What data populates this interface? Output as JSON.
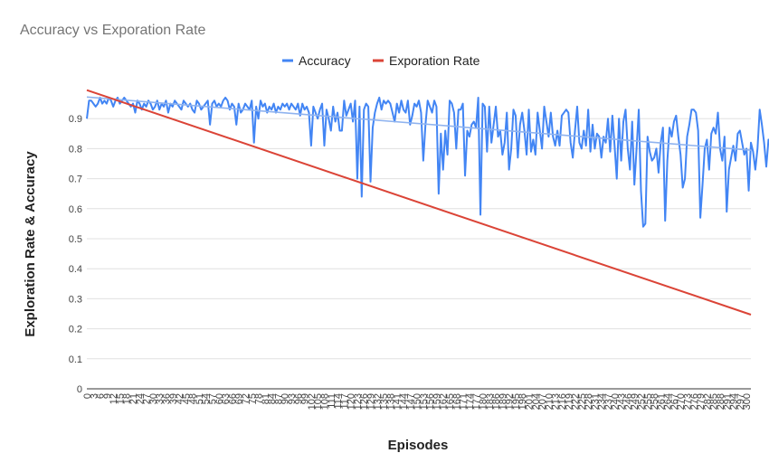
{
  "chart_data": {
    "type": "line",
    "title": "Accuracy vs Exporation Rate",
    "xlabel": "Episodes",
    "ylabel": "Exploration Rate & Accuracy",
    "xlim": [
      0,
      302
    ],
    "ylim": [
      0,
      1
    ],
    "y_ticks": [
      "0",
      "0.1",
      "0.2",
      "0.3",
      "0.4",
      "0.5",
      "0.6",
      "0.7",
      "0.8",
      "0.9"
    ],
    "x_tick_step": 3,
    "grid": true,
    "legend_position": "top",
    "series": [
      {
        "name": "Accuracy",
        "color": "#4285f4",
        "x_start": 0,
        "x_step": 1,
        "values": [
          0.9,
          0.96,
          0.96,
          0.95,
          0.94,
          0.95,
          0.97,
          0.95,
          0.96,
          0.95,
          0.97,
          0.96,
          0.94,
          0.96,
          0.97,
          0.95,
          0.96,
          0.97,
          0.96,
          0.95,
          0.94,
          0.95,
          0.92,
          0.96,
          0.95,
          0.93,
          0.95,
          0.94,
          0.96,
          0.95,
          0.93,
          0.94,
          0.96,
          0.93,
          0.95,
          0.94,
          0.96,
          0.92,
          0.95,
          0.94,
          0.96,
          0.95,
          0.94,
          0.93,
          0.96,
          0.95,
          0.94,
          0.95,
          0.93,
          0.92,
          0.96,
          0.95,
          0.93,
          0.94,
          0.95,
          0.96,
          0.88,
          0.95,
          0.96,
          0.94,
          0.95,
          0.94,
          0.96,
          0.97,
          0.96,
          0.93,
          0.95,
          0.94,
          0.88,
          0.95,
          0.92,
          0.93,
          0.95,
          0.94,
          0.93,
          0.96,
          0.82,
          0.94,
          0.9,
          0.96,
          0.94,
          0.95,
          0.92,
          0.94,
          0.93,
          0.95,
          0.92,
          0.94,
          0.93,
          0.95,
          0.94,
          0.95,
          0.93,
          0.95,
          0.94,
          0.93,
          0.95,
          0.91,
          0.95,
          0.93,
          0.94,
          0.92,
          0.81,
          0.94,
          0.92,
          0.9,
          0.93,
          0.95,
          0.81,
          0.93,
          0.9,
          0.86,
          0.94,
          0.89,
          0.92,
          0.86,
          0.86,
          0.96,
          0.91,
          0.93,
          0.95,
          0.89,
          0.96,
          0.7,
          0.94,
          0.64,
          0.93,
          0.95,
          0.94,
          0.69,
          0.87,
          0.92,
          0.95,
          0.97,
          0.93,
          0.96,
          0.95,
          0.96,
          0.95,
          0.92,
          0.89,
          0.95,
          0.92,
          0.96,
          0.93,
          0.92,
          0.96,
          0.88,
          0.91,
          0.95,
          0.94,
          0.96,
          0.92,
          0.76,
          0.88,
          0.96,
          0.94,
          0.92,
          0.96,
          0.94,
          0.65,
          0.85,
          0.73,
          0.86,
          0.78,
          0.96,
          0.95,
          0.92,
          0.8,
          0.93,
          0.93,
          0.95,
          0.71,
          0.86,
          0.84,
          0.88,
          0.89,
          0.87,
          0.97,
          0.58,
          0.95,
          0.94,
          0.79,
          0.94,
          0.82,
          0.88,
          0.94,
          0.84,
          0.86,
          0.78,
          0.82,
          0.92,
          0.73,
          0.8,
          0.93,
          0.91,
          0.77,
          0.88,
          0.92,
          0.86,
          0.78,
          0.93,
          0.79,
          0.83,
          0.78,
          0.92,
          0.86,
          0.8,
          0.94,
          0.89,
          0.84,
          0.92,
          0.84,
          0.81,
          0.86,
          0.81,
          0.91,
          0.92,
          0.93,
          0.92,
          0.82,
          0.77,
          0.86,
          0.94,
          0.82,
          0.8,
          0.86,
          0.81,
          0.93,
          0.79,
          0.88,
          0.8,
          0.85,
          0.84,
          0.77,
          0.84,
          0.82,
          0.9,
          0.79,
          0.91,
          0.81,
          0.7,
          0.9,
          0.76,
          0.89,
          0.93,
          0.8,
          0.73,
          0.89,
          0.68,
          0.8,
          0.93,
          0.66,
          0.54,
          0.55,
          0.84,
          0.79,
          0.76,
          0.77,
          0.8,
          0.72,
          0.82,
          0.87,
          0.56,
          0.76,
          0.87,
          0.84,
          0.89,
          0.91,
          0.84,
          0.78,
          0.67,
          0.7,
          0.84,
          0.88,
          0.93,
          0.93,
          0.92,
          0.86,
          0.57,
          0.68,
          0.8,
          0.83,
          0.73,
          0.85,
          0.87,
          0.85,
          0.92,
          0.8,
          0.76,
          0.84,
          0.59,
          0.73,
          0.77,
          0.81,
          0.76,
          0.85,
          0.86,
          0.82,
          0.78,
          0.8,
          0.66,
          0.82,
          0.79,
          0.73,
          0.8,
          0.93,
          0.88,
          0.82,
          0.74,
          0.83,
          0.81,
          0.82
        ]
      },
      {
        "name": "",
        "color": "#8fb3ef",
        "points": [
          [
            0,
            0.972
          ],
          [
            302,
            0.795
          ]
        ]
      },
      {
        "name": "Exporation Rate",
        "color": "#db4437",
        "points": [
          [
            0,
            0.995
          ],
          [
            302,
            0.247
          ]
        ]
      }
    ]
  }
}
